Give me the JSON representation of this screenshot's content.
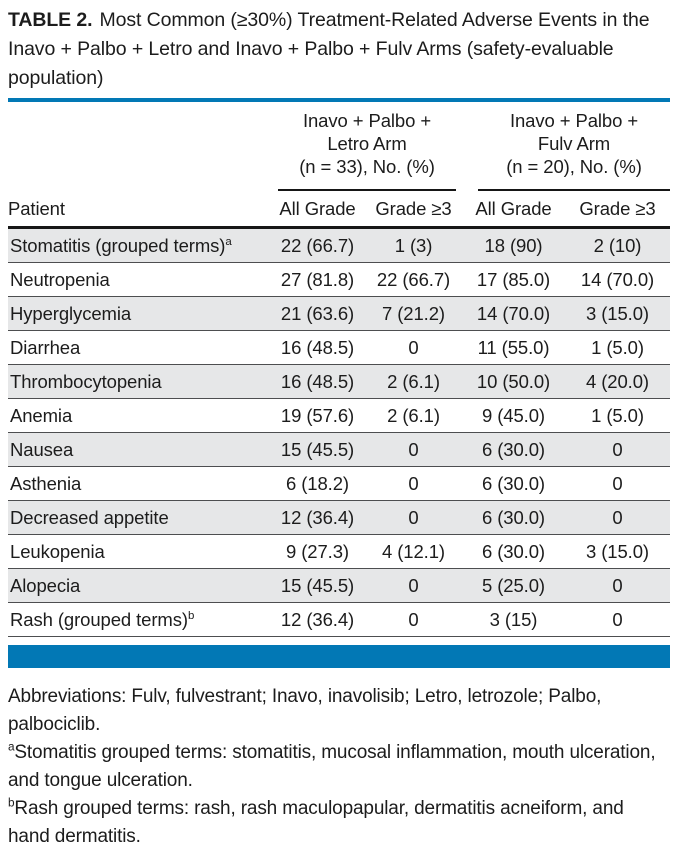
{
  "title": {
    "label": "TABLE 2.",
    "text": "Most Common (≥30%) Treatment-Related Adverse Events in the Inavo + Palbo + Letro and Inavo + Palbo + Fulv Arms (safety-evaluable population)"
  },
  "table": {
    "groups": [
      {
        "lines": [
          "Inavo + Palbo +",
          "Letro Arm",
          "(n = 33), No. (%)"
        ]
      },
      {
        "lines": [
          "Inavo + Palbo +",
          "Fulv Arm",
          "(n = 20), No. (%)"
        ]
      }
    ],
    "header": {
      "patient": "Patient",
      "cols": [
        "All Grade",
        "Grade ≥3",
        "All Grade",
        "Grade ≥3"
      ]
    },
    "rows": [
      {
        "name": "Stomatitis (grouped terms)",
        "sup": "a",
        "cells": [
          "22 (66.7)",
          "1 (3)",
          "18 (90)",
          "2 (10)"
        ]
      },
      {
        "name": "Neutropenia",
        "sup": "",
        "cells": [
          "27 (81.8)",
          "22 (66.7)",
          "17 (85.0)",
          "14 (70.0)"
        ]
      },
      {
        "name": "Hyperglycemia",
        "sup": "",
        "cells": [
          "21 (63.6)",
          "7 (21.2)",
          "14 (70.0)",
          "3 (15.0)"
        ]
      },
      {
        "name": "Diarrhea",
        "sup": "",
        "cells": [
          "16 (48.5)",
          "0",
          "11 (55.0)",
          "1 (5.0)"
        ]
      },
      {
        "name": "Thrombocytopenia",
        "sup": "",
        "cells": [
          "16 (48.5)",
          "2 (6.1)",
          "10 (50.0)",
          "4 (20.0)"
        ]
      },
      {
        "name": "Anemia",
        "sup": "",
        "cells": [
          "19 (57.6)",
          "2 (6.1)",
          "9 (45.0)",
          "1 (5.0)"
        ]
      },
      {
        "name": "Nausea",
        "sup": "",
        "cells": [
          "15 (45.5)",
          "0",
          "6 (30.0)",
          "0"
        ]
      },
      {
        "name": "Asthenia",
        "sup": "",
        "cells": [
          "6 (18.2)",
          "0",
          "6 (30.0)",
          "0"
        ]
      },
      {
        "name": "Decreased appetite",
        "sup": "",
        "cells": [
          "12 (36.4)",
          "0",
          "6 (30.0)",
          "0"
        ]
      },
      {
        "name": "Leukopenia",
        "sup": "",
        "cells": [
          "9 (27.3)",
          "4 (12.1)",
          "6 (30.0)",
          "3 (15.0)"
        ]
      },
      {
        "name": "Alopecia",
        "sup": "",
        "cells": [
          "15 (45.5)",
          "0",
          "5 (25.0)",
          "0"
        ]
      },
      {
        "name": "Rash (grouped terms)",
        "sup": "b",
        "cells": [
          "12 (36.4)",
          "0",
          "3 (15)",
          "0"
        ]
      }
    ]
  },
  "footnotes": [
    {
      "sup": "",
      "text": "Abbreviations: Fulv, fulvestrant; Inavo, inavolisib; Letro, letrozole; Palbo, palbociclib."
    },
    {
      "sup": "a",
      "text": "Stomatitis grouped terms: stomatitis, mucosal inflammation, mouth ulceration, and tongue ulceration."
    },
    {
      "sup": "b",
      "text": "Rash grouped terms: rash, rash maculopapular, dermatitis acneiform, and hand dermatitis."
    }
  ],
  "colors": {
    "accent_blue": "#0278B5",
    "row_shade": "#E6E7E8",
    "rule_dark": "#161616",
    "row_separator": "#4D4E50"
  }
}
